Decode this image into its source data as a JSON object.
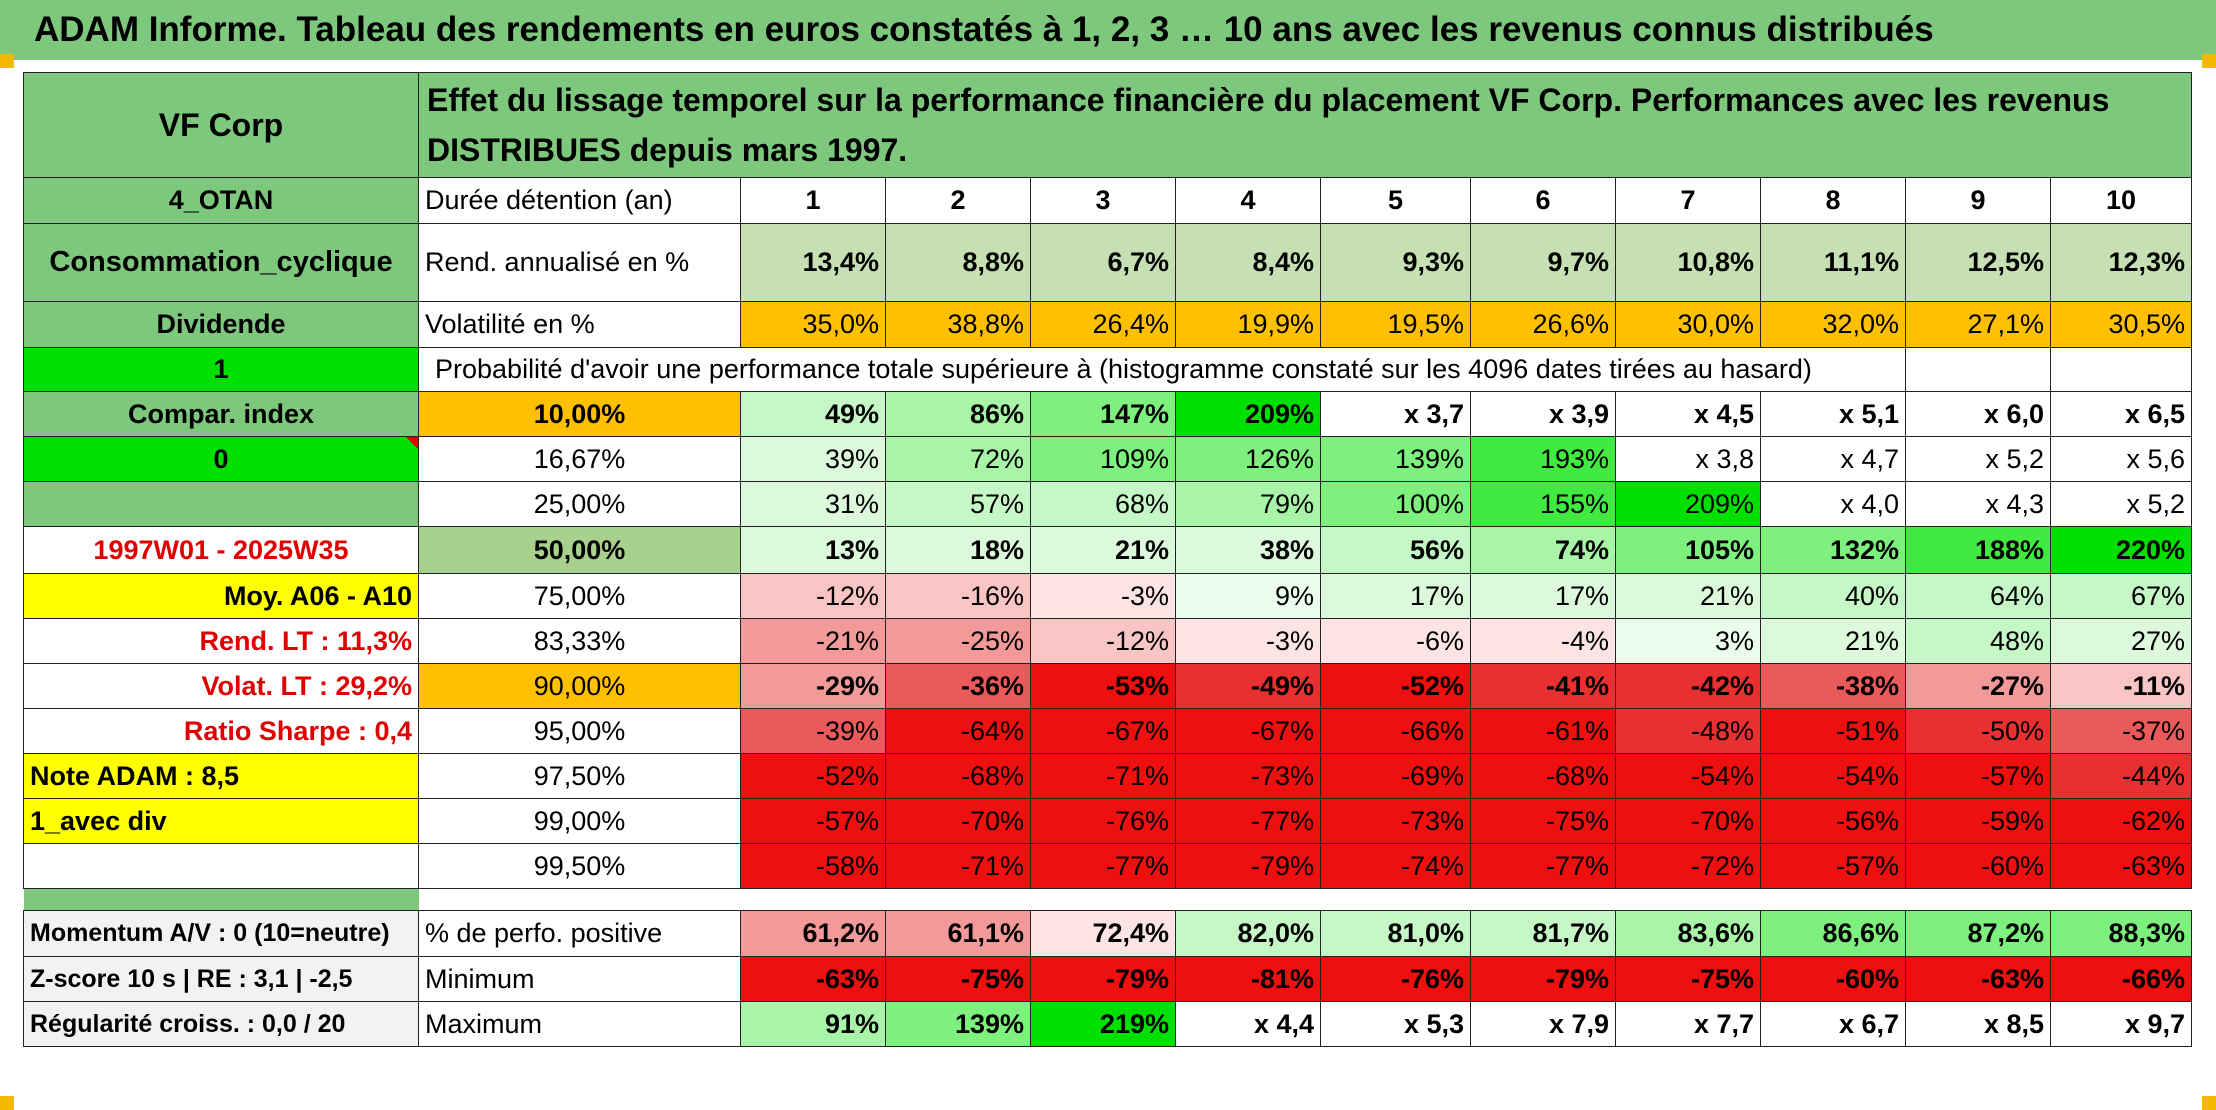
{
  "title": "ADAM Informe. Tableau des rendements en euros constatés à 1, 2, 3 … 10 ans avec les revenus connus distribués",
  "header": {
    "company": "VF Corp",
    "description": "Effet du lissage temporel sur la performance financière du placement VF Corp. Performances avec les revenus DISTRIBUES depuis mars 1997."
  },
  "rows": {
    "duration": {
      "side": "4_OTAN",
      "label": "Durée détention (an)",
      "values": [
        "1",
        "2",
        "3",
        "4",
        "5",
        "6",
        "7",
        "8",
        "9",
        "10"
      ]
    },
    "annual": {
      "side": "Consommation_cyclique",
      "label": "Rend. annualisé en %",
      "values": [
        "13,4%",
        "8,8%",
        "6,7%",
        "8,4%",
        "9,3%",
        "9,7%",
        "10,8%",
        "11,1%",
        "12,5%",
        "12,3%"
      ]
    },
    "volatility": {
      "side": "Dividende",
      "label": "Volatilité en %",
      "values": [
        "35,0%",
        "38,8%",
        "26,4%",
        "19,9%",
        "19,5%",
        "26,6%",
        "30,0%",
        "32,0%",
        "27,1%",
        "30,5%"
      ]
    },
    "prob_header": {
      "side": "1",
      "label": "Probabilité d'avoir une performance totale supérieure à (histogramme constaté sur les 4096 dates tirées au hasard)"
    },
    "percentiles": [
      {
        "side": "Compar. index",
        "label": "10,00%",
        "values": [
          "49%",
          "86%",
          "147%",
          "209%",
          "x 3,7",
          "x 3,9",
          "x 4,5",
          "x 5,1",
          "x 6,0",
          "x 6,5"
        ]
      },
      {
        "side": "0",
        "label": "16,67%",
        "values": [
          "39%",
          "72%",
          "109%",
          "126%",
          "139%",
          "193%",
          "x 3,8",
          "x 4,7",
          "x 5,2",
          "x 5,6"
        ]
      },
      {
        "side": "",
        "label": "25,00%",
        "values": [
          "31%",
          "57%",
          "68%",
          "79%",
          "100%",
          "155%",
          "209%",
          "x 4,0",
          "x 4,3",
          "x 5,2"
        ]
      },
      {
        "side": "1997W01 - 2025W35",
        "label": "50,00%",
        "values": [
          "13%",
          "18%",
          "21%",
          "38%",
          "56%",
          "74%",
          "105%",
          "132%",
          "188%",
          "220%"
        ]
      },
      {
        "side": "Moy. A06 - A10",
        "label": "75,00%",
        "values": [
          "-12%",
          "-16%",
          "-3%",
          "9%",
          "17%",
          "17%",
          "21%",
          "40%",
          "64%",
          "67%"
        ]
      },
      {
        "side": "Rend. LT :    11,3%",
        "label": "83,33%",
        "values": [
          "-21%",
          "-25%",
          "-12%",
          "-3%",
          "-6%",
          "-4%",
          "3%",
          "21%",
          "48%",
          "27%"
        ]
      },
      {
        "side": "Volat. LT :    29,2%",
        "label": "90,00%",
        "values": [
          "-29%",
          "-36%",
          "-53%",
          "-49%",
          "-52%",
          "-41%",
          "-42%",
          "-38%",
          "-27%",
          "-11%"
        ]
      },
      {
        "side": "Ratio Sharpe :    0,4",
        "label": "95,00%",
        "values": [
          "-39%",
          "-64%",
          "-67%",
          "-67%",
          "-66%",
          "-61%",
          "-48%",
          "-51%",
          "-50%",
          "-37%"
        ]
      },
      {
        "side": "Note ADAM : 8,5",
        "label": "97,50%",
        "values": [
          "-52%",
          "-68%",
          "-71%",
          "-73%",
          "-69%",
          "-68%",
          "-54%",
          "-54%",
          "-57%",
          "-44%"
        ]
      },
      {
        "side": "1_avec div",
        "label": "99,00%",
        "values": [
          "-57%",
          "-70%",
          "-76%",
          "-77%",
          "-73%",
          "-75%",
          "-70%",
          "-56%",
          "-59%",
          "-62%"
        ]
      },
      {
        "side": "",
        "label": "99,50%",
        "values": [
          "-58%",
          "-71%",
          "-77%",
          "-79%",
          "-74%",
          "-77%",
          "-72%",
          "-57%",
          "-60%",
          "-63%"
        ]
      }
    ],
    "positive": {
      "side": "Momentum A/V : 0 (10=neutre)",
      "label": "% de perfo. positive",
      "values": [
        "61,2%",
        "61,1%",
        "72,4%",
        "82,0%",
        "81,0%",
        "81,7%",
        "83,6%",
        "86,6%",
        "87,2%",
        "88,3%"
      ]
    },
    "minimum": {
      "side": "Z-score 10 s | RE : 3,1 | -2,5",
      "label": "Minimum",
      "values": [
        "-63%",
        "-75%",
        "-79%",
        "-81%",
        "-76%",
        "-79%",
        "-75%",
        "-60%",
        "-63%",
        "-66%"
      ]
    },
    "maximum": {
      "side": "Régularité croiss. : 0,0 / 20",
      "label": "Maximum",
      "values": [
        "91%",
        "139%",
        "219%",
        "x 4,4",
        "x 5,3",
        "x 7,9",
        "x 7,7",
        "x 6,7",
        "x 8,5",
        "x 9,7"
      ]
    }
  },
  "colors": {
    "title_green": "#7dc87d",
    "bright_green": "#00e000",
    "orange": "#ffc000",
    "yellow": "#ffff00",
    "red_text": "#e00000"
  }
}
